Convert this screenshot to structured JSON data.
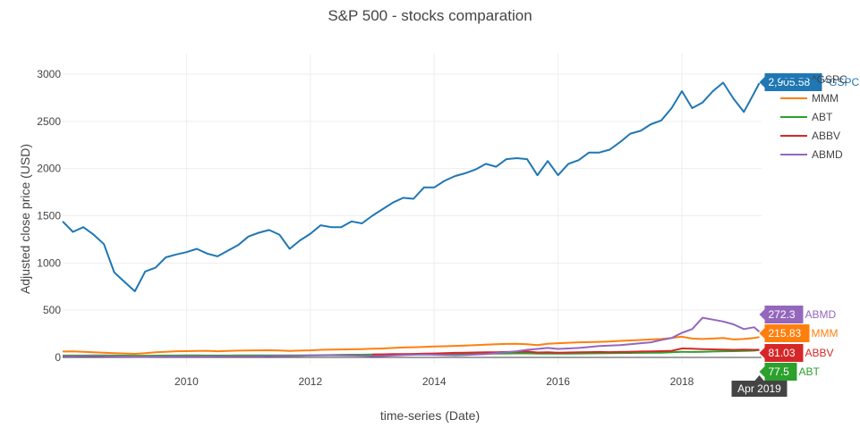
{
  "chart_data": {
    "type": "line",
    "title": "S&P 500 - stocks comparation",
    "xlabel": "time-series (Date)",
    "ylabel": "Adjusted close price (USD)",
    "x_ticks": [
      "2010",
      "2012",
      "2014",
      "2016",
      "2018"
    ],
    "y_ticks": [
      "0",
      "500",
      "1000",
      "1500",
      "2000",
      "2500",
      "3000"
    ],
    "xlim": [
      "2008-01",
      "2019-04"
    ],
    "ylim": [
      0,
      3000
    ],
    "grid": true,
    "legend_position": "right",
    "x": [
      "2008-01",
      "2008-03",
      "2008-05",
      "2008-07",
      "2008-09",
      "2008-11",
      "2009-01",
      "2009-03",
      "2009-05",
      "2009-07",
      "2009-09",
      "2009-11",
      "2010-01",
      "2010-03",
      "2010-05",
      "2010-07",
      "2010-09",
      "2010-11",
      "2011-01",
      "2011-03",
      "2011-05",
      "2011-07",
      "2011-09",
      "2011-11",
      "2012-01",
      "2012-03",
      "2012-05",
      "2012-07",
      "2012-09",
      "2012-11",
      "2013-01",
      "2013-03",
      "2013-05",
      "2013-07",
      "2013-09",
      "2013-11",
      "2014-01",
      "2014-03",
      "2014-05",
      "2014-07",
      "2014-09",
      "2014-11",
      "2015-01",
      "2015-03",
      "2015-05",
      "2015-07",
      "2015-09",
      "2015-11",
      "2016-01",
      "2016-03",
      "2016-05",
      "2016-07",
      "2016-09",
      "2016-11",
      "2017-01",
      "2017-03",
      "2017-05",
      "2017-07",
      "2017-09",
      "2017-11",
      "2018-01",
      "2018-03",
      "2018-05",
      "2018-07",
      "2018-09",
      "2018-11",
      "2019-01",
      "2019-03",
      "2019-04"
    ],
    "series": [
      {
        "name": "^GSPC",
        "color": "#1f77b4",
        "values": [
          1440,
          1330,
          1380,
          1300,
          1200,
          900,
          800,
          700,
          910,
          950,
          1060,
          1090,
          1115,
          1150,
          1100,
          1070,
          1130,
          1190,
          1280,
          1320,
          1350,
          1300,
          1150,
          1240,
          1310,
          1400,
          1380,
          1380,
          1440,
          1420,
          1500,
          1570,
          1640,
          1690,
          1680,
          1800,
          1800,
          1870,
          1920,
          1950,
          1990,
          2050,
          2020,
          2100,
          2110,
          2100,
          1930,
          2080,
          1930,
          2050,
          2090,
          2170,
          2170,
          2200,
          2280,
          2370,
          2400,
          2470,
          2510,
          2640,
          2820,
          2640,
          2700,
          2820,
          2910,
          2740,
          2600,
          2800,
          2905.58
        ]
      },
      {
        "name": "MMM",
        "color": "#ff7f0e",
        "values": [
          62,
          63,
          60,
          55,
          50,
          45,
          42,
          38,
          45,
          55,
          60,
          65,
          66,
          68,
          70,
          65,
          68,
          72,
          73,
          75,
          76,
          74,
          68,
          72,
          75,
          80,
          82,
          84,
          86,
          88,
          92,
          95,
          100,
          105,
          108,
          112,
          115,
          118,
          122,
          126,
          130,
          135,
          140,
          143,
          145,
          140,
          130,
          145,
          150,
          155,
          160,
          162,
          165,
          168,
          175,
          180,
          185,
          190,
          195,
          205,
          220,
          200,
          195,
          200,
          205,
          190,
          195,
          205,
          215.83
        ]
      },
      {
        "name": "ABT",
        "color": "#2ca02c",
        "values": [
          20,
          20,
          20,
          21,
          21,
          20,
          19,
          18,
          18,
          19,
          20,
          20,
          21,
          21,
          20,
          20,
          20,
          21,
          21,
          21,
          22,
          22,
          21,
          22,
          23,
          24,
          25,
          27,
          28,
          28,
          30,
          31,
          32,
          33,
          34,
          35,
          36,
          37,
          38,
          38,
          40,
          40,
          41,
          42,
          43,
          44,
          40,
          42,
          40,
          40,
          42,
          43,
          44,
          45,
          46,
          47,
          48,
          49,
          50,
          55,
          60,
          58,
          60,
          62,
          65,
          66,
          68,
          72,
          77.5
        ]
      },
      {
        "name": "ABBV",
        "color": "#d62728",
        "values": [
          null,
          null,
          null,
          null,
          null,
          null,
          null,
          null,
          null,
          null,
          null,
          null,
          null,
          null,
          null,
          null,
          null,
          null,
          null,
          null,
          null,
          null,
          null,
          null,
          null,
          null,
          null,
          null,
          null,
          null,
          30,
          32,
          35,
          36,
          37,
          40,
          42,
          45,
          48,
          50,
          52,
          55,
          55,
          58,
          60,
          62,
          52,
          55,
          50,
          52,
          55,
          56,
          58,
          56,
          58,
          60,
          62,
          64,
          66,
          70,
          95,
          92,
          88,
          85,
          82,
          80,
          82,
          80,
          81.03
        ]
      },
      {
        "name": "ABMD",
        "color": "#9467bd",
        "values": [
          14,
          12,
          14,
          15,
          13,
          10,
          9,
          7,
          8,
          9,
          10,
          10,
          10,
          10,
          10,
          11,
          11,
          11,
          11,
          12,
          14,
          16,
          15,
          16,
          20,
          22,
          23,
          22,
          20,
          18,
          14,
          15,
          20,
          25,
          28,
          30,
          28,
          25,
          23,
          25,
          30,
          35,
          45,
          55,
          65,
          80,
          90,
          100,
          90,
          95,
          100,
          110,
          120,
          125,
          130,
          140,
          150,
          160,
          185,
          205,
          260,
          300,
          420,
          400,
          380,
          350,
          300,
          320,
          272.3
        ]
      }
    ]
  },
  "hover": {
    "x_label": "Apr 2019",
    "labels": [
      {
        "series": "^GSPC",
        "value": "2,905.58"
      },
      {
        "series": "ABMD",
        "value": "272.3"
      },
      {
        "series": "MMM",
        "value": "215.83"
      },
      {
        "series": "ABBV",
        "value": "81.03"
      },
      {
        "series": "ABT",
        "value": "77.5"
      }
    ]
  }
}
